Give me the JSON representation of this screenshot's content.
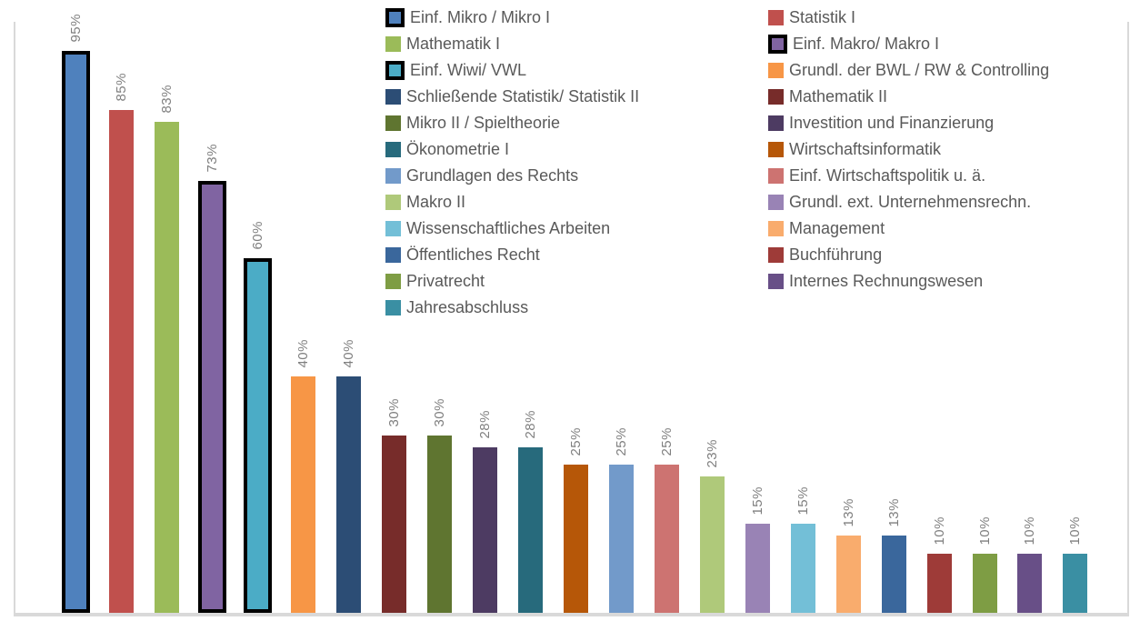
{
  "chart_data": {
    "type": "bar",
    "title": "",
    "xlabel": "",
    "ylabel": "",
    "unit": "%",
    "ylim": [
      0,
      100
    ],
    "grid": false,
    "axis_labels_visible": false,
    "legend_position": "top-center, two columns, overlaying plot",
    "categories": [
      "Einf. Mikro / Mikro I",
      "Statistik I",
      "Mathematik I",
      "Einf. Makro/ Makro I",
      "Einf. Wiwi/ VWL",
      "Grundl. der BWL / RW & Controlling",
      "Schließende Statistik/ Statistik II",
      "Mathematik II",
      "Mikro II / Spieltheorie",
      "Investition und Finanzierung",
      "Ökonometrie I",
      "Wirtschaftsinformatik",
      "Grundlagen des Rechts",
      "Einf. Wirtschaftspolitik u. ä.",
      "Makro II",
      "Grundl. ext. Unternehmensrechn.",
      "Wissenschaftliches Arbeiten",
      "Management",
      "Öffentliches Recht",
      "Buchführung",
      "Privatrecht",
      "Internes Rechnungswesen",
      "Jahresabschluss"
    ],
    "values": [
      95,
      85,
      83,
      73,
      60,
      40,
      40,
      30,
      30,
      28,
      28,
      25,
      25,
      25,
      23,
      15,
      15,
      13,
      13,
      10,
      10,
      10,
      10
    ],
    "series": [
      {
        "name": "Einf. Mikro / Mikro I",
        "value": 95,
        "label": "95%",
        "color": "#4F81BD",
        "outlined": true
      },
      {
        "name": "Statistik I",
        "value": 85,
        "label": "85%",
        "color": "#C0504D",
        "outlined": false
      },
      {
        "name": "Mathematik I",
        "value": 83,
        "label": "83%",
        "color": "#9BBB59",
        "outlined": false
      },
      {
        "name": "Einf. Makro/ Makro I",
        "value": 73,
        "label": "73%",
        "color": "#8064A2",
        "outlined": true
      },
      {
        "name": "Einf. Wiwi/ VWL",
        "value": 60,
        "label": "60%",
        "color": "#4BACC6",
        "outlined": true
      },
      {
        "name": "Grundl. der BWL / RW & Controlling",
        "value": 40,
        "label": "40%",
        "color": "#F79646",
        "outlined": false
      },
      {
        "name": "Schließende Statistik/ Statistik II",
        "value": 40,
        "label": "40%",
        "color": "#2C4D75",
        "outlined": false
      },
      {
        "name": "Mathematik II",
        "value": 30,
        "label": "30%",
        "color": "#772C2A",
        "outlined": false
      },
      {
        "name": "Mikro II / Spieltheorie",
        "value": 30,
        "label": "30%",
        "color": "#5F7530",
        "outlined": false
      },
      {
        "name": "Investition und Finanzierung",
        "value": 28,
        "label": "28%",
        "color": "#4D3B62",
        "outlined": false
      },
      {
        "name": "Ökonometrie I",
        "value": 28,
        "label": "28%",
        "color": "#276A7C",
        "outlined": false
      },
      {
        "name": "Wirtschaftsinformatik",
        "value": 25,
        "label": "25%",
        "color": "#B65708",
        "outlined": false
      },
      {
        "name": "Grundlagen des Rechts",
        "value": 25,
        "label": "25%",
        "color": "#729ACA",
        "outlined": false
      },
      {
        "name": "Einf. Wirtschaftspolitik u. ä.",
        "value": 25,
        "label": "25%",
        "color": "#CD7371",
        "outlined": false
      },
      {
        "name": "Makro II",
        "value": 23,
        "label": "23%",
        "color": "#AFC97A",
        "outlined": false
      },
      {
        "name": "Grundl. ext. Unternehmensrechn.",
        "value": 15,
        "label": "15%",
        "color": "#9983B5",
        "outlined": false
      },
      {
        "name": "Wissenschaftliches Arbeiten",
        "value": 15,
        "label": "15%",
        "color": "#73BFD7",
        "outlined": false
      },
      {
        "name": "Management",
        "value": 13,
        "label": "13%",
        "color": "#F9AC6D",
        "outlined": false
      },
      {
        "name": "Öffentliches Recht",
        "value": 13,
        "label": "13%",
        "color": "#3A679C",
        "outlined": false
      },
      {
        "name": "Buchführung",
        "value": 10,
        "label": "10%",
        "color": "#9E3B38",
        "outlined": false
      },
      {
        "name": "Privatrecht",
        "value": 10,
        "label": "10%",
        "color": "#7E9D44",
        "outlined": false
      },
      {
        "name": "Internes Rechnungswesen",
        "value": 10,
        "label": "10%",
        "color": "#684F87",
        "outlined": false
      },
      {
        "name": "Jahresabschluss",
        "value": 10,
        "label": "10%",
        "color": "#3A8FA3",
        "outlined": false
      }
    ]
  },
  "colors": {
    "axis_line": "#D9D9D9",
    "data_label_text": "#7F7F7F",
    "legend_text": "#595959",
    "bar_outline": "#000000",
    "background": "#FFFFFF"
  }
}
